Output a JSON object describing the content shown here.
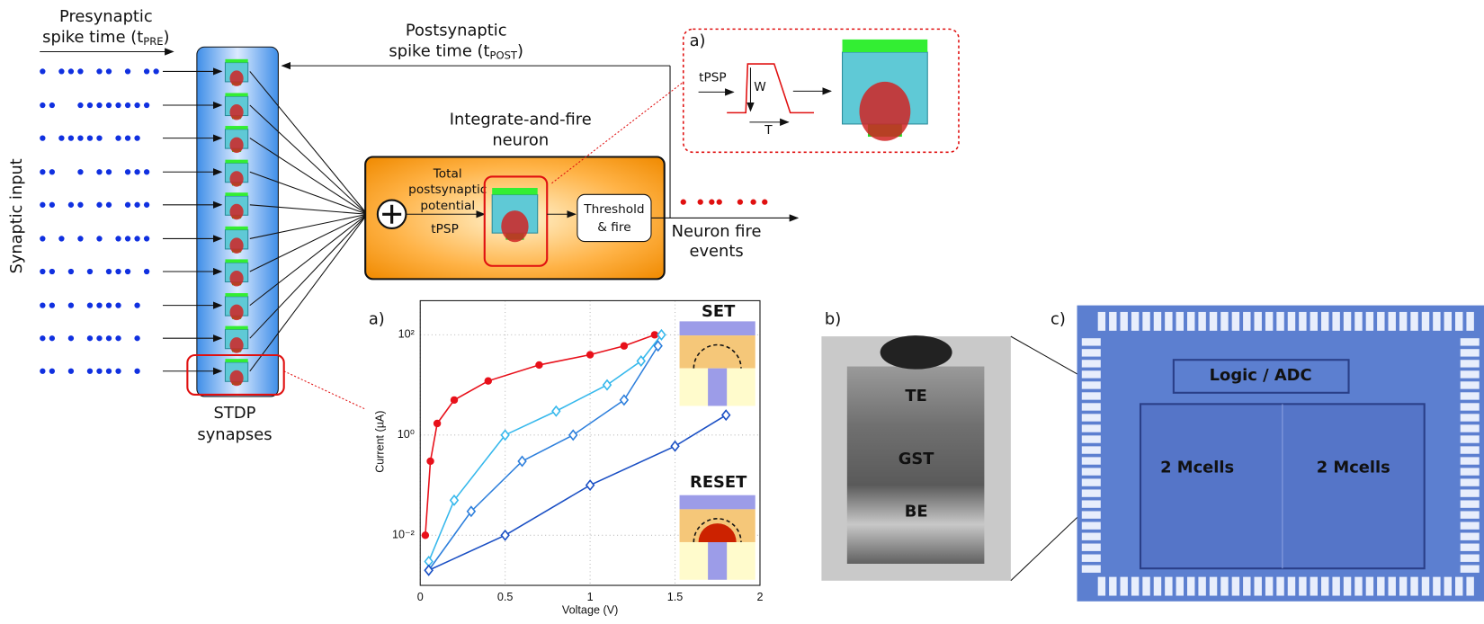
{
  "diagram": {
    "presynaptic": {
      "line1": "Presynaptic",
      "line2": "spike time (t",
      "sub": "PRE",
      "end": ")"
    },
    "postsynaptic": {
      "line1": "Postsynaptic",
      "line2": "spike time (t",
      "sub": "POST",
      "end": ")"
    },
    "synaptic_input": "Synaptic input",
    "stdp": [
      "STDP",
      "synapses"
    ],
    "neuron": [
      "Integrate-and-fire",
      "neuron"
    ],
    "potential": [
      "Total",
      "postsynaptic",
      "potential"
    ],
    "tpsp": "tPSP",
    "threshold": [
      "Threshold",
      "& fire"
    ],
    "fire_events": [
      "Neuron fire",
      "events"
    ],
    "inset": {
      "label": "a)",
      "tpsp": "tPSP",
      "w": "W",
      "t": "T"
    }
  },
  "chart_data": {
    "type": "line",
    "panel": "a)",
    "x_label": "Voltage (V)",
    "y_label": "Current (µA)",
    "log_y": true,
    "grid": true,
    "xlim": [
      0,
      2
    ],
    "xticks": [
      0,
      0.5,
      1,
      1.5,
      2
    ],
    "ylim": [
      0.001,
      480
    ],
    "yticks": [
      {
        "value": 0.01,
        "label": "10⁻²"
      },
      {
        "value": 1,
        "label": "10⁰"
      },
      {
        "value": 100,
        "label": "10²"
      }
    ],
    "insets": {
      "set": "SET",
      "reset": "RESET"
    },
    "series": [
      {
        "color": "#e8101a",
        "marker": "circle",
        "x": [
          0.03,
          0.06,
          0.1,
          0.2,
          0.4,
          0.7,
          1.0,
          1.2,
          1.38
        ],
        "values": [
          0.01,
          0.3,
          1.7,
          5,
          12,
          25,
          40,
          60,
          100
        ]
      },
      {
        "color": "#36b8ec",
        "marker": "diamond",
        "x": [
          0.05,
          0.2,
          0.5,
          0.8,
          1.1,
          1.3,
          1.42
        ],
        "values": [
          0.003,
          0.05,
          1,
          3,
          10,
          30,
          100
        ]
      },
      {
        "color": "#2d7fdc",
        "marker": "diamond",
        "x": [
          0.05,
          0.3,
          0.6,
          0.9,
          1.2,
          1.4
        ],
        "values": [
          0.002,
          0.03,
          0.3,
          1,
          5,
          60
        ]
      },
      {
        "color": "#1a4fc4",
        "marker": "diamond",
        "x": [
          0.05,
          0.5,
          1.0,
          1.5,
          1.8
        ],
        "values": [
          0.002,
          0.01,
          0.1,
          0.6,
          2.5
        ]
      }
    ]
  },
  "photo_b": {
    "panel": "b)",
    "labels": [
      "TE",
      "GST",
      "BE"
    ]
  },
  "photo_c": {
    "panel": "c)",
    "labels": [
      "Logic / ADC",
      "2 Mcells",
      "2 Mcells"
    ]
  }
}
